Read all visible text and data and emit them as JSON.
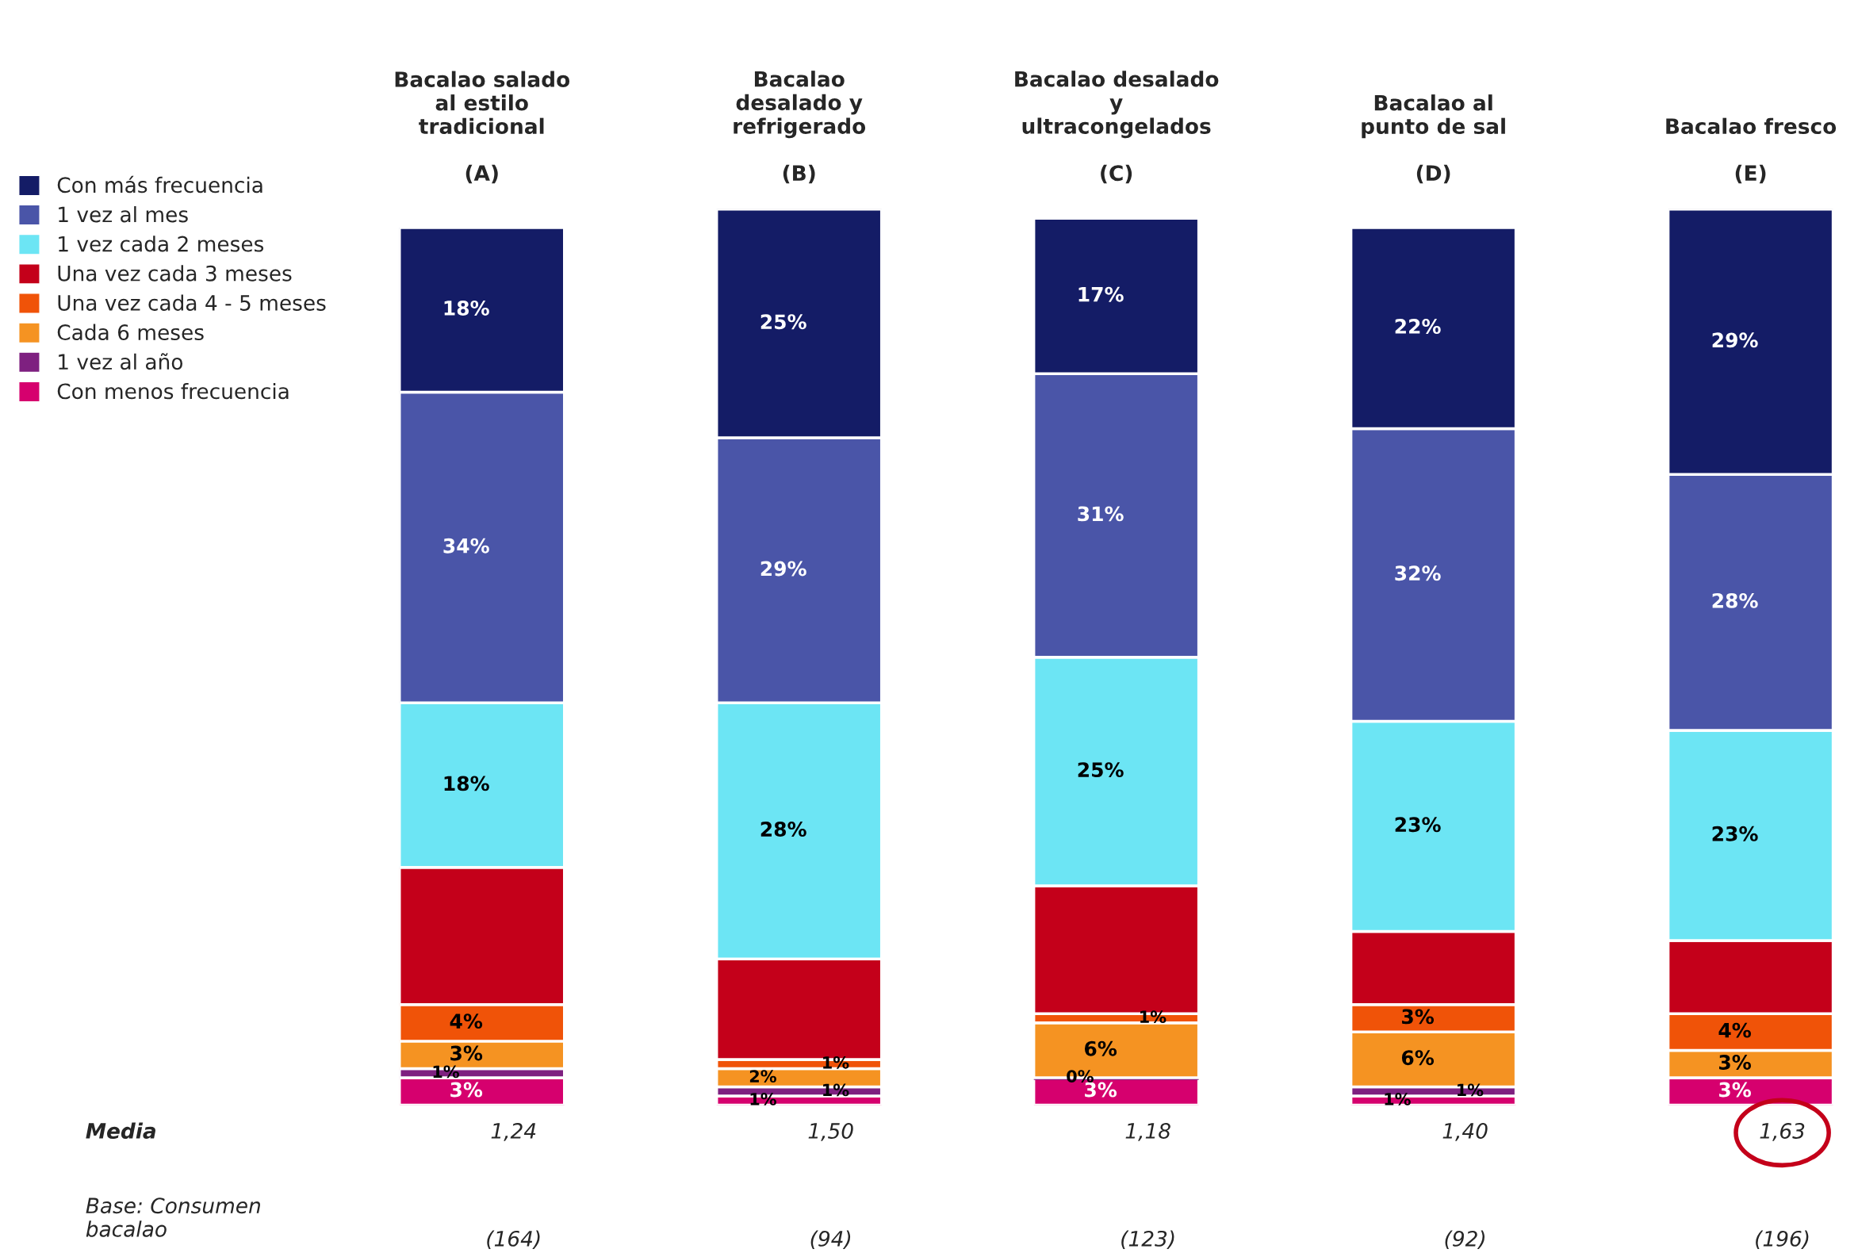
{
  "chart_data": {
    "type": "bar",
    "stacked": true,
    "categories": [
      "Bacalao salado\nal estilo\ntradicional\n\n(A)",
      "Bacalao\ndesalado y\nrefrigerado\n\n(B)",
      "Bacalao desalado\ny\nultracongelados\n\n(C)",
      "Bacalao al\npunto de sal\n\n(D)",
      "Bacalao fresco\n\n(E)"
    ],
    "tick_labels": "x",
    "grid": false,
    "legend": "top left",
    "series": [
      {
        "name": "Con menos frecuencia",
        "color": "#d6006e",
        "values": [
          3,
          1,
          3,
          1,
          3
        ],
        "value_labels": [
          "3%",
          "1%",
          "3%",
          "1%",
          "3%"
        ]
      },
      {
        "name": "1 vez al año",
        "color": "#7e2080",
        "values": [
          1,
          1,
          0,
          1,
          0
        ],
        "value_labels": [
          "1%",
          "1%",
          "0%",
          "1%",
          null
        ]
      },
      {
        "name": "Cada 6 meses",
        "color": "#f59322",
        "values": [
          3,
          2,
          6,
          6,
          3
        ],
        "value_labels": [
          "3%",
          "2%",
          "6%",
          "6%",
          "3%"
        ]
      },
      {
        "name": "Una vez cada 4 - 5 meses",
        "color": "#f05308",
        "values": [
          4,
          1,
          1,
          3,
          4
        ],
        "value_labels": [
          "4%",
          "1%",
          "1%",
          "3%",
          "4%"
        ]
      },
      {
        "name": "Una vez cada 3 meses",
        "color": "#c4001a",
        "values": [
          15,
          11,
          14,
          8,
          8
        ],
        "value_labels": [
          null,
          null,
          null,
          null,
          null
        ]
      },
      {
        "name": "1 vez cada 2 meses",
        "color": "#6ce5f4",
        "values": [
          18,
          28,
          25,
          23,
          23
        ],
        "value_labels": [
          "18%",
          "28%",
          "25%",
          "23%",
          "23%"
        ]
      },
      {
        "name": "1 vez al mes",
        "color": "#4a55a8",
        "values": [
          34,
          29,
          31,
          32,
          28
        ],
        "value_labels": [
          "34%",
          "29%",
          "31%",
          "32%",
          "28%"
        ]
      },
      {
        "name": "Con más frecuencia",
        "color": "#141c66",
        "values": [
          18,
          25,
          17,
          22,
          29
        ],
        "value_labels": [
          "18%",
          "25%",
          "17%",
          "22%",
          "29%"
        ]
      }
    ],
    "annotations": [
      "Media",
      "1,24",
      "1,50",
      "1,18",
      "1,40",
      "1,63",
      "Base: Consumen\nbacalao",
      "(164)",
      "(94)",
      "(123)",
      "(92)",
      "(196)"
    ]
  }
}
